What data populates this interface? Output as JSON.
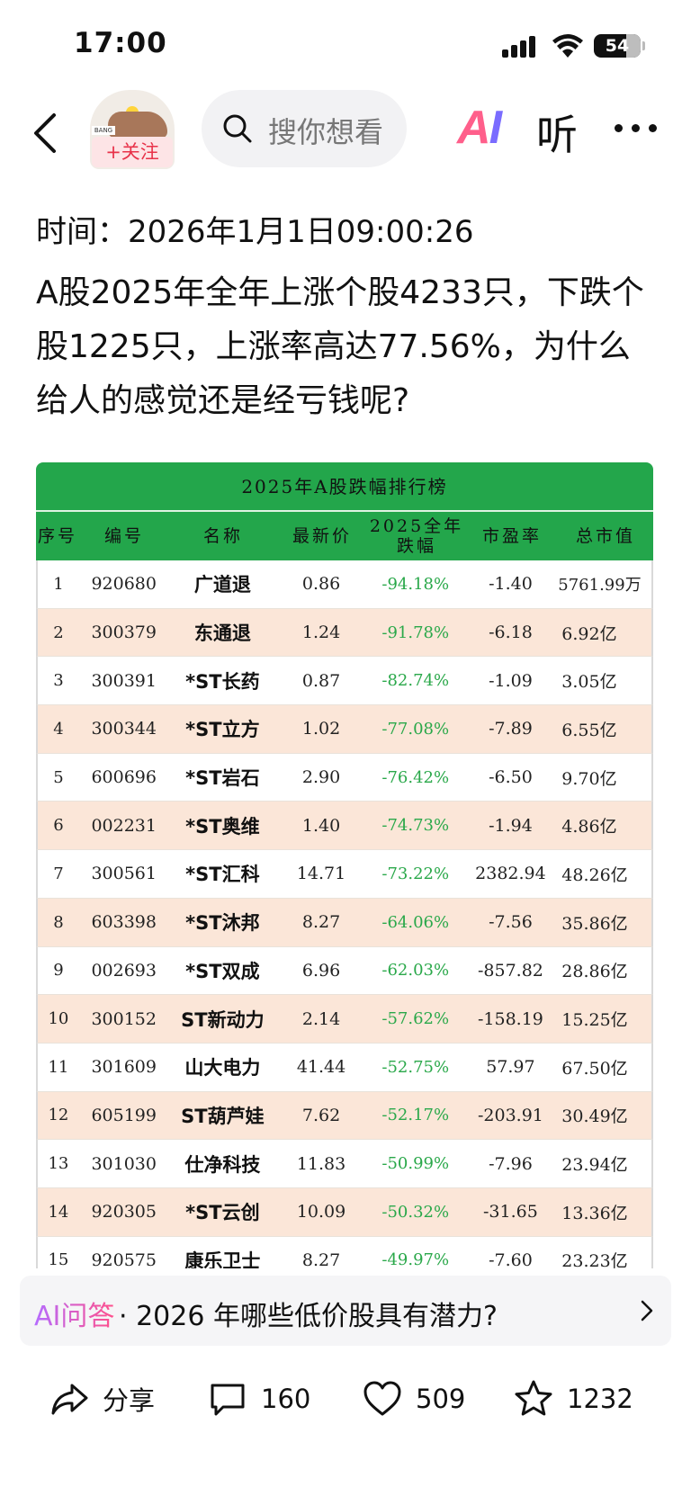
{
  "status_bar": {
    "time": "17:00",
    "battery": "54"
  },
  "nav": {
    "follow_label": "+关注",
    "search_placeholder": "搜你想看",
    "ai_label_a": "A",
    "ai_label_i": "I",
    "listen_label": "听",
    "avatar_brand": "BANG"
  },
  "article": {
    "time": "时间：2026年1月1日09:00:26",
    "title": "A股2025年全年上涨个股4233只，下跌个股1225只，上涨率高达77.56%，为什么给人的感觉还是经亏钱呢?"
  },
  "table": {
    "caption": "2025年A股跌幅排行榜",
    "headers": [
      "序号",
      "编号",
      "名称",
      "最新价",
      "2025全年跌幅",
      "市盈率",
      "总市值"
    ],
    "header_change_line1": "2025全年",
    "header_change_line2": "跌幅",
    "rows": [
      {
        "rank": "1",
        "code": "920680",
        "name": "广道退",
        "price": "0.86",
        "change": "-94.18%",
        "pe": "-1.40",
        "cap": "5761.99万"
      },
      {
        "rank": "2",
        "code": "300379",
        "name": "东通退",
        "price": "1.24",
        "change": "-91.78%",
        "pe": "-6.18",
        "cap": "6.92亿"
      },
      {
        "rank": "3",
        "code": "300391",
        "name": "*ST长药",
        "price": "0.87",
        "change": "-82.74%",
        "pe": "-1.09",
        "cap": "3.05亿"
      },
      {
        "rank": "4",
        "code": "300344",
        "name": "*ST立方",
        "price": "1.02",
        "change": "-77.08%",
        "pe": "-7.89",
        "cap": "6.55亿"
      },
      {
        "rank": "5",
        "code": "600696",
        "name": "*ST岩石",
        "price": "2.90",
        "change": "-76.42%",
        "pe": "-6.50",
        "cap": "9.70亿"
      },
      {
        "rank": "6",
        "code": "002231",
        "name": "*ST奥维",
        "price": "1.40",
        "change": "-74.73%",
        "pe": "-1.94",
        "cap": "4.86亿"
      },
      {
        "rank": "7",
        "code": "300561",
        "name": "*ST汇科",
        "price": "14.71",
        "change": "-73.22%",
        "pe": "2382.94",
        "cap": "48.26亿"
      },
      {
        "rank": "8",
        "code": "603398",
        "name": "*ST沐邦",
        "price": "8.27",
        "change": "-64.06%",
        "pe": "-7.56",
        "cap": "35.86亿"
      },
      {
        "rank": "9",
        "code": "002693",
        "name": "*ST双成",
        "price": "6.96",
        "change": "-62.03%",
        "pe": "-857.82",
        "cap": "28.86亿"
      },
      {
        "rank": "10",
        "code": "300152",
        "name": "ST新动力",
        "price": "2.14",
        "change": "-57.62%",
        "pe": "-158.19",
        "cap": "15.25亿"
      },
      {
        "rank": "11",
        "code": "301609",
        "name": "山大电力",
        "price": "41.44",
        "change": "-52.75%",
        "pe": "57.97",
        "cap": "67.50亿"
      },
      {
        "rank": "12",
        "code": "605199",
        "name": "ST葫芦娃",
        "price": "7.62",
        "change": "-52.17%",
        "pe": "-203.91",
        "cap": "30.49亿"
      },
      {
        "rank": "13",
        "code": "301030",
        "name": "仕净科技",
        "price": "11.83",
        "change": "-50.99%",
        "pe": "-7.96",
        "cap": "23.94亿"
      },
      {
        "rank": "14",
        "code": "920305",
        "name": "*ST云创",
        "price": "10.09",
        "change": "-50.32%",
        "pe": "-31.65",
        "cap": "13.36亿"
      },
      {
        "rank": "15",
        "code": "920575",
        "name": "康乐卫士",
        "price": "8.27",
        "change": "-49.97%",
        "pe": "-7.60",
        "cap": "23.23亿"
      }
    ]
  },
  "ai_answer": {
    "tag": "AI问答",
    "text": "· 2026 年哪些低价股具有潜力?"
  },
  "actions": {
    "share": "分享",
    "comments": "160",
    "likes": "509",
    "favorites": "1232"
  },
  "colors": {
    "table_green": "#23a64b",
    "row_alt": "#fbe6d8",
    "change_green": "#2aa84a",
    "follow_red": "#e8334a"
  }
}
